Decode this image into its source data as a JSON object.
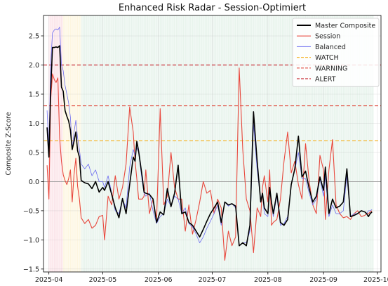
{
  "chart_data": {
    "type": "line",
    "title": "Enhanced Risk Radar - Session-Optimiert",
    "xlabel": "",
    "ylabel": "Composite Z-Score",
    "x_domain": [
      "2025-03-29",
      "2025-10-03"
    ],
    "ylim": [
      -1.55,
      2.85
    ],
    "y_ticks": [
      -1.5,
      -1.0,
      -0.5,
      0.0,
      0.5,
      1.0,
      1.5,
      2.0,
      2.5
    ],
    "y_tick_labels": [
      "−1.5",
      "−1.0",
      "−0.5",
      "0.0",
      "0.5",
      "1.0",
      "1.5",
      "2.0",
      "2.5"
    ],
    "x_ticks": [
      "2025-04-01",
      "2025-05-01",
      "2025-06-01",
      "2025-07-01",
      "2025-08-01",
      "2025-09-01",
      "2025-10-01"
    ],
    "x_tick_labels": [
      "2025-04",
      "2025-05",
      "2025-06",
      "2025-07",
      "2025-08",
      "2025-09",
      "2025-10"
    ],
    "grid": true,
    "legend_position": "top-right",
    "thresholds": [
      {
        "name": "WATCH",
        "value": 0.7,
        "color": "#f5b52e"
      },
      {
        "name": "WARNING",
        "value": 1.3,
        "color": "#e0473a"
      },
      {
        "name": "ALERT",
        "value": 2.0,
        "color": "#c8313a"
      }
    ],
    "background_regions": [
      {
        "start": "2025-04-01",
        "end": "2025-04-09",
        "level": "alert",
        "color": "#f8cdd6"
      },
      {
        "start": "2025-04-09",
        "end": "2025-04-19",
        "level": "watch",
        "color": "#fbf0c8"
      },
      {
        "start": "2025-04-19",
        "end": "2025-09-29",
        "level": "normal",
        "color": "#d5eadc"
      }
    ],
    "series": [
      {
        "name": "Master Composite",
        "color": "#000000",
        "x": [
          "2025-03-31",
          "2025-04-01",
          "2025-04-02",
          "2025-04-03",
          "2025-04-04",
          "2025-04-05",
          "2025-04-06",
          "2025-04-07",
          "2025-04-08",
          "2025-04-09",
          "2025-04-10",
          "2025-04-11",
          "2025-04-12",
          "2025-04-13",
          "2025-04-14",
          "2025-04-15",
          "2025-04-16",
          "2025-04-17",
          "2025-04-18",
          "2025-04-19",
          "2025-04-21",
          "2025-04-23",
          "2025-04-25",
          "2025-04-27",
          "2025-04-29",
          "2025-05-01",
          "2025-05-02",
          "2025-05-04",
          "2025-05-06",
          "2025-05-08",
          "2025-05-10",
          "2025-05-12",
          "2025-05-14",
          "2025-05-16",
          "2025-05-18",
          "2025-05-19",
          "2025-05-20",
          "2025-05-21",
          "2025-05-23",
          "2025-05-24",
          "2025-05-25",
          "2025-05-27",
          "2025-05-29",
          "2025-05-31",
          "2025-06-02",
          "2025-06-04",
          "2025-06-06",
          "2025-06-08",
          "2025-06-10",
          "2025-06-12",
          "2025-06-14",
          "2025-06-16",
          "2025-06-18",
          "2025-06-20",
          "2025-06-22",
          "2025-06-24",
          "2025-06-26",
          "2025-06-28",
          "2025-06-30",
          "2025-07-02",
          "2025-07-04",
          "2025-07-06",
          "2025-07-08",
          "2025-07-10",
          "2025-07-12",
          "2025-07-14",
          "2025-07-16",
          "2025-07-18",
          "2025-07-20",
          "2025-07-22",
          "2025-07-24",
          "2025-07-26",
          "2025-07-28",
          "2025-07-29",
          "2025-07-30",
          "2025-08-01",
          "2025-08-02",
          "2025-08-03",
          "2025-08-04",
          "2025-08-06",
          "2025-08-08",
          "2025-08-10",
          "2025-08-12",
          "2025-08-14",
          "2025-08-16",
          "2025-08-18",
          "2025-08-20",
          "2025-08-22",
          "2025-08-24",
          "2025-08-26",
          "2025-08-28",
          "2025-08-30",
          "2025-09-01",
          "2025-09-02",
          "2025-09-04",
          "2025-09-06",
          "2025-09-08",
          "2025-09-10",
          "2025-09-12",
          "2025-09-14",
          "2025-09-16",
          "2025-09-18",
          "2025-09-20",
          "2025-09-22",
          "2025-09-24",
          "2025-09-25",
          "2025-09-26",
          "2025-09-27",
          "2025-09-28"
        ],
        "values": [
          0.93,
          0.42,
          1.55,
          2.3,
          2.3,
          2.31,
          2.3,
          2.33,
          1.62,
          1.55,
          1.22,
          1.12,
          1.04,
          0.88,
          0.55,
          0.69,
          0.85,
          0.53,
          0.42,
          0.02,
          -0.02,
          -0.04,
          -0.12,
          0.0,
          -0.18,
          -0.1,
          -0.15,
          0.0,
          -0.22,
          -0.45,
          -0.62,
          -0.29,
          -0.55,
          -0.05,
          0.42,
          0.35,
          0.69,
          0.52,
          0.08,
          -0.18,
          -0.2,
          -0.22,
          -0.3,
          -0.7,
          -0.52,
          -0.57,
          -0.12,
          -0.43,
          -0.2,
          0.28,
          -0.55,
          -0.52,
          -0.7,
          -0.75,
          -0.85,
          -0.95,
          -0.82,
          -0.68,
          -0.55,
          -0.45,
          -0.35,
          -0.7,
          -0.35,
          -0.4,
          -0.38,
          -0.42,
          -1.1,
          -1.05,
          -1.1,
          -0.75,
          1.2,
          0.35,
          -0.35,
          -0.2,
          -0.45,
          -0.55,
          -0.1,
          -0.35,
          -0.55,
          -0.2,
          -0.7,
          -0.75,
          -0.65,
          -0.05,
          0.22,
          0.78,
          0.08,
          0.18,
          -0.12,
          -0.35,
          -0.25,
          0.08,
          -0.15,
          0.25,
          -0.55,
          -0.3,
          -0.45,
          -0.42,
          -0.35,
          0.22,
          -0.6,
          -0.58,
          -0.55,
          -0.5,
          -0.52,
          -0.55,
          -0.6,
          -0.55,
          -0.52
        ],
        "line_width": 1.6
      },
      {
        "name": "Session",
        "color": "#e8473c",
        "x": [
          "2025-03-31",
          "2025-04-01",
          "2025-04-02",
          "2025-04-03",
          "2025-04-04",
          "2025-04-05",
          "2025-04-06",
          "2025-04-07",
          "2025-04-08",
          "2025-04-09",
          "2025-04-10",
          "2025-04-11",
          "2025-04-12",
          "2025-04-13",
          "2025-04-14",
          "2025-04-15",
          "2025-04-16",
          "2025-04-17",
          "2025-04-18",
          "2025-04-19",
          "2025-04-21",
          "2025-04-23",
          "2025-04-25",
          "2025-04-27",
          "2025-04-29",
          "2025-05-01",
          "2025-05-02",
          "2025-05-04",
          "2025-05-06",
          "2025-05-08",
          "2025-05-10",
          "2025-05-12",
          "2025-05-14",
          "2025-05-16",
          "2025-05-18",
          "2025-05-19",
          "2025-05-20",
          "2025-05-21",
          "2025-05-23",
          "2025-05-24",
          "2025-05-25",
          "2025-05-27",
          "2025-05-29",
          "2025-05-31",
          "2025-06-02",
          "2025-06-04",
          "2025-06-06",
          "2025-06-08",
          "2025-06-10",
          "2025-06-12",
          "2025-06-14",
          "2025-06-16",
          "2025-06-18",
          "2025-06-20",
          "2025-06-22",
          "2025-06-24",
          "2025-06-26",
          "2025-06-28",
          "2025-06-30",
          "2025-07-02",
          "2025-07-04",
          "2025-07-06",
          "2025-07-08",
          "2025-07-10",
          "2025-07-12",
          "2025-07-14",
          "2025-07-16",
          "2025-07-18",
          "2025-07-20",
          "2025-07-22",
          "2025-07-24",
          "2025-07-26",
          "2025-07-28",
          "2025-07-29",
          "2025-07-30",
          "2025-08-01",
          "2025-08-02",
          "2025-08-03",
          "2025-08-04",
          "2025-08-06",
          "2025-08-08",
          "2025-08-10",
          "2025-08-12",
          "2025-08-14",
          "2025-08-16",
          "2025-08-18",
          "2025-08-20",
          "2025-08-22",
          "2025-08-24",
          "2025-08-26",
          "2025-08-28",
          "2025-08-30",
          "2025-09-01",
          "2025-09-02",
          "2025-09-04",
          "2025-09-06",
          "2025-09-08",
          "2025-09-10",
          "2025-09-12",
          "2025-09-14",
          "2025-09-16",
          "2025-09-18",
          "2025-09-20",
          "2025-09-22",
          "2025-09-24",
          "2025-09-25",
          "2025-09-26",
          "2025-09-27",
          "2025-09-28"
        ],
        "values": [
          0.28,
          -0.3,
          1.4,
          1.85,
          1.75,
          1.7,
          1.78,
          0.75,
          0.35,
          0.12,
          0.02,
          -0.05,
          0.05,
          0.2,
          -0.35,
          0.12,
          0.4,
          -0.08,
          -0.3,
          -0.62,
          -0.72,
          -0.65,
          -0.8,
          -0.75,
          -0.6,
          -0.58,
          -1.0,
          -0.25,
          -0.4,
          0.1,
          -0.3,
          -0.1,
          0.3,
          1.28,
          0.85,
          0.35,
          0.05,
          -0.3,
          -0.3,
          -0.25,
          0.2,
          -0.55,
          -0.3,
          -0.65,
          1.25,
          -0.4,
          -0.25,
          0.5,
          -0.1,
          -0.3,
          -0.3,
          -0.85,
          -0.4,
          -0.9,
          -0.65,
          -0.35,
          0.0,
          -0.2,
          -0.15,
          -0.55,
          -0.3,
          -0.45,
          -1.35,
          -0.85,
          -1.1,
          -0.95,
          1.95,
          0.55,
          -0.3,
          -0.5,
          -1.22,
          -0.45,
          -0.6,
          -0.1,
          0.1,
          -0.35,
          0.2,
          -0.75,
          -0.7,
          -0.65,
          -0.3,
          0.35,
          0.85,
          0.15,
          0.35,
          -0.05,
          -0.3,
          0.65,
          0.0,
          -0.4,
          -0.55,
          0.45,
          0.2,
          -0.65,
          0.2,
          0.72,
          -0.4,
          -0.55,
          -0.62,
          -0.6,
          -0.65,
          -0.55,
          -0.5,
          -0.6,
          -0.58,
          -0.55,
          -0.55,
          -0.52,
          -0.5
        ],
        "line_width": 1.1
      },
      {
        "name": "Balanced",
        "color": "#6b6bf0",
        "x": [
          "2025-03-31",
          "2025-04-01",
          "2025-04-02",
          "2025-04-03",
          "2025-04-04",
          "2025-04-05",
          "2025-04-06",
          "2025-04-07",
          "2025-04-08",
          "2025-04-09",
          "2025-04-10",
          "2025-04-11",
          "2025-04-12",
          "2025-04-13",
          "2025-04-14",
          "2025-04-15",
          "2025-04-16",
          "2025-04-17",
          "2025-04-18",
          "2025-04-19",
          "2025-04-21",
          "2025-04-23",
          "2025-04-25",
          "2025-04-27",
          "2025-04-29",
          "2025-05-01",
          "2025-05-02",
          "2025-05-04",
          "2025-05-06",
          "2025-05-08",
          "2025-05-10",
          "2025-05-12",
          "2025-05-14",
          "2025-05-16",
          "2025-05-18",
          "2025-05-19",
          "2025-05-20",
          "2025-05-21",
          "2025-05-23",
          "2025-05-24",
          "2025-05-25",
          "2025-05-27",
          "2025-05-29",
          "2025-05-31",
          "2025-06-02",
          "2025-06-04",
          "2025-06-06",
          "2025-06-08",
          "2025-06-10",
          "2025-06-12",
          "2025-06-14",
          "2025-06-16",
          "2025-06-18",
          "2025-06-20",
          "2025-06-22",
          "2025-06-24",
          "2025-06-26",
          "2025-06-28",
          "2025-06-30",
          "2025-07-02",
          "2025-07-04",
          "2025-07-06",
          "2025-07-08",
          "2025-07-10",
          "2025-07-12",
          "2025-07-14",
          "2025-07-16",
          "2025-07-18",
          "2025-07-20",
          "2025-07-22",
          "2025-07-24",
          "2025-07-26",
          "2025-07-28",
          "2025-07-29",
          "2025-07-30",
          "2025-08-01",
          "2025-08-02",
          "2025-08-03",
          "2025-08-04",
          "2025-08-06",
          "2025-08-08",
          "2025-08-10",
          "2025-08-12",
          "2025-08-14",
          "2025-08-16",
          "2025-08-18",
          "2025-08-20",
          "2025-08-22",
          "2025-08-24",
          "2025-08-26",
          "2025-08-28",
          "2025-08-30",
          "2025-09-01",
          "2025-09-02",
          "2025-09-04",
          "2025-09-06",
          "2025-09-08",
          "2025-09-10",
          "2025-09-12",
          "2025-09-14",
          "2025-09-16",
          "2025-09-18",
          "2025-09-20",
          "2025-09-22",
          "2025-09-24",
          "2025-09-25",
          "2025-09-26",
          "2025-09-27",
          "2025-09-28"
        ],
        "values": [
          1.22,
          0.55,
          2.0,
          2.55,
          2.6,
          2.62,
          2.6,
          2.65,
          2.0,
          1.9,
          1.65,
          1.5,
          1.35,
          1.1,
          0.55,
          0.85,
          1.05,
          0.75,
          0.55,
          0.3,
          0.22,
          0.3,
          0.1,
          0.2,
          0.0,
          0.0,
          -0.1,
          0.1,
          -0.2,
          -0.5,
          -0.55,
          -0.3,
          -0.45,
          0.25,
          0.55,
          0.45,
          0.58,
          0.5,
          0.0,
          -0.2,
          -0.25,
          -0.2,
          -0.5,
          -0.72,
          -0.6,
          -0.55,
          -0.3,
          -0.42,
          -0.25,
          -0.3,
          -0.55,
          -0.45,
          -0.72,
          -0.78,
          -0.9,
          -1.05,
          -0.95,
          -0.8,
          -0.68,
          -0.55,
          -0.4,
          -0.75,
          -0.35,
          -0.42,
          -0.38,
          -0.45,
          -1.1,
          -1.05,
          -1.05,
          -0.85,
          1.0,
          0.2,
          -0.3,
          -0.2,
          -0.55,
          -0.6,
          -0.15,
          -0.35,
          -0.6,
          -0.25,
          -0.75,
          -0.72,
          -0.6,
          -0.05,
          0.2,
          0.5,
          0.05,
          0.05,
          -0.2,
          -0.4,
          -0.3,
          0.05,
          -0.25,
          0.1,
          -0.6,
          -0.4,
          -0.55,
          -0.55,
          -0.5,
          0.1,
          -0.6,
          -0.55,
          -0.55,
          -0.5,
          -0.52,
          -0.55,
          -0.5,
          -0.5,
          -0.48
        ],
        "line_width": 0.8
      }
    ]
  }
}
